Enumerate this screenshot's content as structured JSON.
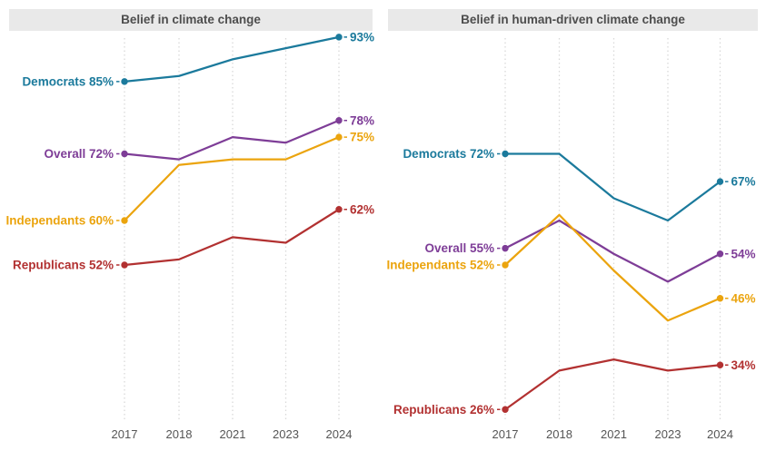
{
  "styles": {
    "background": "#FFFFFF",
    "title_bar_bg": "#E9E9E9",
    "title_text": "#4D4D4D",
    "axis_text": "#555555",
    "gridline": "#D9D9D9"
  },
  "chart_data": [
    {
      "type": "line",
      "title": "Belief in climate change",
      "x": [
        2017,
        2018,
        2021,
        2023,
        2024
      ],
      "x_tick_labels": [
        "2017",
        "2018",
        "2021",
        "2023",
        "2024"
      ],
      "ylim": [
        24,
        94
      ],
      "grid": "vertical-dotted",
      "legend": "inline-start-and-end-labels",
      "series": [
        {
          "name": "Democrats",
          "color": "#1B7A9C",
          "values": [
            85,
            86,
            89,
            91,
            93
          ],
          "start_label": "Democrats 85%",
          "end_label": "93%"
        },
        {
          "name": "Overall",
          "color": "#7E3D97",
          "values": [
            72,
            71,
            75,
            74,
            78
          ],
          "start_label": "Overall 72%",
          "end_label": "78%"
        },
        {
          "name": "Independants",
          "color": "#EBA40E",
          "values": [
            60,
            70,
            71,
            71,
            75
          ],
          "start_label": "Independants 60%",
          "end_label": "75%"
        },
        {
          "name": "Republicans",
          "color": "#B23131",
          "values": [
            52,
            53,
            57,
            56,
            62
          ],
          "start_label": "Republicans 52%",
          "end_label": "62%"
        }
      ]
    },
    {
      "type": "line",
      "title": "Belief in human-driven climate change",
      "x": [
        2017,
        2018,
        2021,
        2023,
        2024
      ],
      "x_tick_labels": [
        "2017",
        "2018",
        "2021",
        "2023",
        "2024"
      ],
      "ylim": [
        24,
        94
      ],
      "grid": "vertical-dotted",
      "legend": "inline-start-and-end-labels",
      "series": [
        {
          "name": "Democrats",
          "color": "#1B7A9C",
          "values": [
            72,
            72,
            64,
            60,
            67
          ],
          "start_label": "Democrats 72%",
          "end_label": "67%"
        },
        {
          "name": "Overall",
          "color": "#7E3D97",
          "values": [
            55,
            60,
            54,
            49,
            54
          ],
          "start_label": "Overall 55%",
          "end_label": "54%"
        },
        {
          "name": "Independants",
          "color": "#EBA40E",
          "values": [
            52,
            61,
            51,
            42,
            46
          ],
          "start_label": "Independants 52%",
          "end_label": "46%"
        },
        {
          "name": "Republicans",
          "color": "#B23131",
          "values": [
            26,
            33,
            35,
            33,
            34
          ],
          "start_label": "Republicans 26%",
          "end_label": "34%"
        }
      ]
    }
  ]
}
